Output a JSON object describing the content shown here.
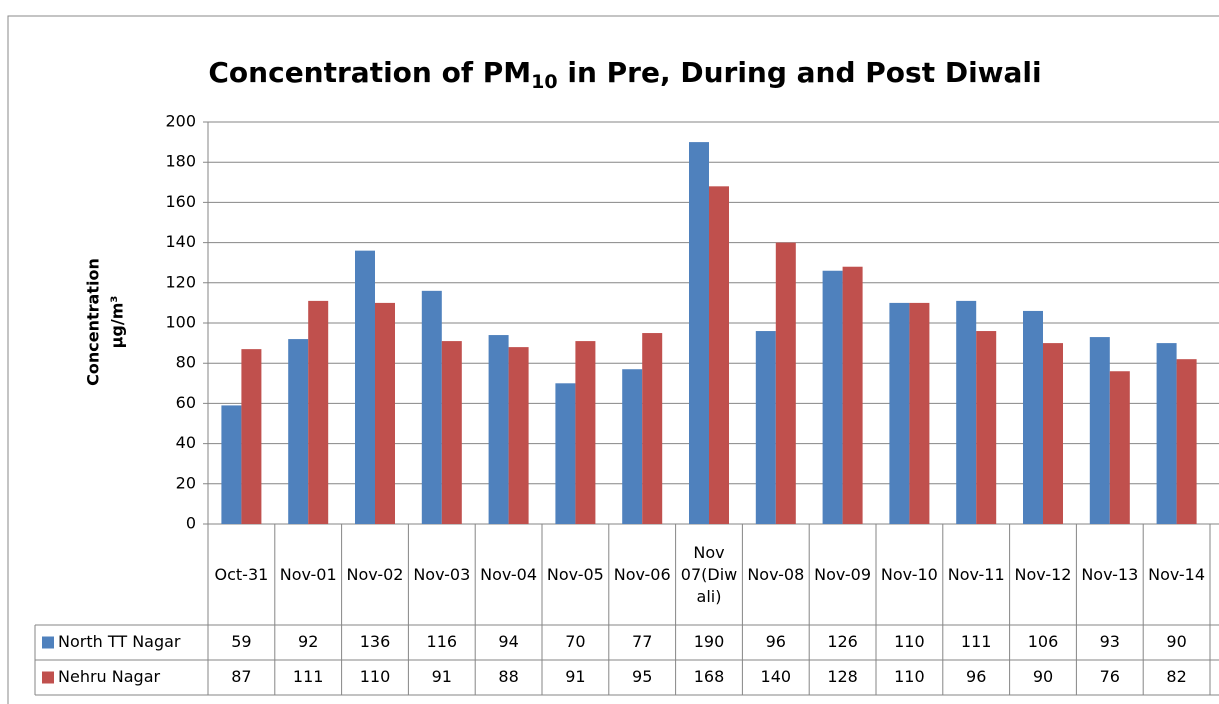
{
  "chart_data": {
    "type": "bar",
    "title": {
      "text": "Concentration of PM",
      "subscript": "10",
      "rest": " in Pre, During and Post Diwali"
    },
    "y_label": [
      "Concentration",
      "µg/m³"
    ],
    "categories": [
      "Oct-31",
      "Nov-01",
      "Nov-02",
      "Nov-03",
      "Nov-04",
      "Nov-05",
      "Nov-06",
      "Nov 07(Diwali)",
      "Nov-08",
      "Nov-09",
      "Nov-10",
      "Nov-11",
      "Nov-12",
      "Nov-13",
      "Nov-14"
    ],
    "series": [
      {
        "name": "North TT Nagar",
        "color": "#4f81bd",
        "values": [
          59,
          92,
          136,
          116,
          94,
          70,
          77,
          190,
          96,
          126,
          110,
          111,
          106,
          93,
          90
        ]
      },
      {
        "name": "Nehru Nagar",
        "color": "#c0504d",
        "values": [
          87,
          111,
          110,
          91,
          88,
          91,
          95,
          168,
          140,
          128,
          110,
          96,
          90,
          76,
          82
        ]
      }
    ],
    "ylim": [
      0,
      200
    ],
    "yticks": [
      0,
      20,
      40,
      60,
      80,
      100,
      120,
      140,
      160,
      180,
      200
    ],
    "grid": true
  }
}
